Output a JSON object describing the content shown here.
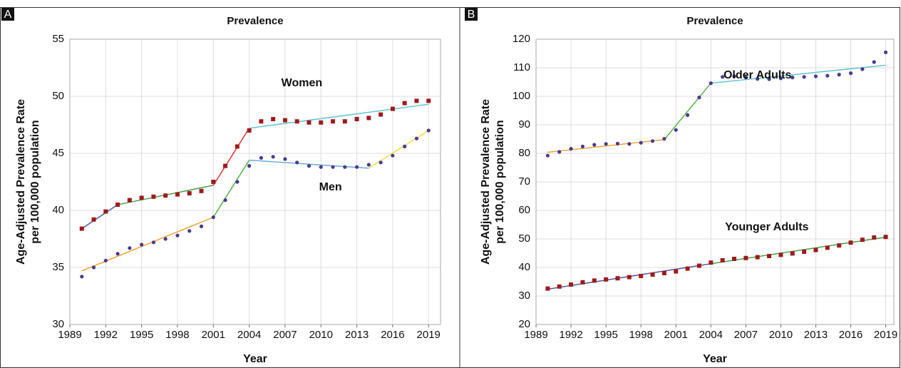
{
  "chart_data": [
    {
      "type": "scatter",
      "panel": "A",
      "title": "Prevalence",
      "x_label": "Year",
      "y_label": [
        "Age-Adjusted Prevalence Rate",
        "per 100,000 population"
      ],
      "xlim": [
        1989,
        2020
      ],
      "xticks": [
        1989,
        1992,
        1995,
        1998,
        2001,
        2004,
        2007,
        2010,
        2013,
        2016,
        2019
      ],
      "ylim": [
        30,
        55
      ],
      "yticks": [
        30,
        35,
        40,
        45,
        50,
        55
      ],
      "grid": true,
      "x": [
        1990,
        1991,
        1992,
        1993,
        1994,
        1995,
        1996,
        1997,
        1998,
        1999,
        2000,
        2001,
        2002,
        2003,
        2004,
        2005,
        2006,
        2007,
        2008,
        2009,
        2010,
        2011,
        2012,
        2013,
        2014,
        2015,
        2016,
        2017,
        2018,
        2019
      ],
      "series": [
        {
          "name": "Women",
          "color": "#9e1b1b",
          "marker": "square",
          "values": [
            38.4,
            39.2,
            39.9,
            40.5,
            40.9,
            41.1,
            41.2,
            41.3,
            41.4,
            41.5,
            41.7,
            42.5,
            43.9,
            45.6,
            47.0,
            47.8,
            48.0,
            47.9,
            47.8,
            47.7,
            47.7,
            47.8,
            47.8,
            48.0,
            48.1,
            48.4,
            48.9,
            49.4,
            49.6,
            49.6
          ],
          "trends": [
            {
              "color": "#3d56a8",
              "x": [
                1990,
                1993
              ],
              "values": [
                38.4,
                40.5
              ]
            },
            {
              "color": "#3c9a3c",
              "x": [
                1993,
                2001
              ],
              "values": [
                40.5,
                42.2
              ]
            },
            {
              "color": "#e0262a",
              "x": [
                2001,
                2004
              ],
              "values": [
                42.2,
                47.2
              ]
            },
            {
              "color": "#5bbfcf",
              "x": [
                2004,
                2019
              ],
              "values": [
                47.2,
                49.3
              ]
            }
          ]
        },
        {
          "name": "Men",
          "color": "#4a3a8f",
          "marker": "circle",
          "values": [
            34.2,
            35.0,
            35.6,
            36.2,
            36.7,
            37.0,
            37.2,
            37.5,
            37.8,
            38.2,
            38.6,
            39.4,
            40.9,
            42.5,
            43.9,
            44.6,
            44.7,
            44.5,
            44.2,
            43.9,
            43.8,
            43.8,
            43.8,
            43.8,
            44.0,
            44.2,
            44.8,
            45.6,
            46.3,
            47.0
          ],
          "trends": [
            {
              "color": "#f0a030",
              "x": [
                1990,
                2001
              ],
              "values": [
                34.7,
                39.4
              ]
            },
            {
              "color": "#4caf3c",
              "x": [
                2001,
                2004
              ],
              "values": [
                39.4,
                44.4
              ]
            },
            {
              "color": "#6aa6d6",
              "x": [
                2004,
                2014
              ],
              "values": [
                44.4,
                43.7
              ]
            },
            {
              "color": "#f2dc3a",
              "x": [
                2014,
                2019
              ],
              "values": [
                43.7,
                47.0
              ]
            }
          ]
        }
      ]
    },
    {
      "type": "scatter",
      "panel": "B",
      "title": "Prevalence",
      "x_label": "Year",
      "y_label": [
        "Age-Adjusted Prevalence Rate",
        "per 100,000 population"
      ],
      "xlim": [
        1989,
        2019.7
      ],
      "xticks": [
        1989,
        1992,
        1995,
        1998,
        2001,
        2004,
        2007,
        2010,
        2013,
        2016,
        2019
      ],
      "ylim": [
        20,
        120
      ],
      "yticks": [
        20,
        30,
        40,
        50,
        60,
        70,
        80,
        90,
        100,
        110,
        120
      ],
      "grid": true,
      "x": [
        1990,
        1991,
        1992,
        1993,
        1994,
        1995,
        1996,
        1997,
        1998,
        1999,
        2000,
        2001,
        2002,
        2003,
        2004,
        2005,
        2006,
        2007,
        2008,
        2009,
        2010,
        2011,
        2012,
        2013,
        2014,
        2015,
        2016,
        2017,
        2018,
        2019
      ],
      "series": [
        {
          "name": "Older Adults",
          "color": "#4a3a8f",
          "marker": "circle",
          "values": [
            79.2,
            80.5,
            81.6,
            82.4,
            83.0,
            83.3,
            83.4,
            83.3,
            83.7,
            84.3,
            85.1,
            88.2,
            93.4,
            99.6,
            104.6,
            106.8,
            107.0,
            106.6,
            106.1,
            106.0,
            106.3,
            106.6,
            106.8,
            107.0,
            107.2,
            107.6,
            108.1,
            109.5,
            112.0,
            115.4
          ],
          "trends": [
            {
              "color": "#f0a030",
              "x": [
                1990,
                2000
              ],
              "values": [
                80.4,
                84.8
              ]
            },
            {
              "color": "#4caf3c",
              "x": [
                2000,
                2004
              ],
              "values": [
                84.8,
                104.6
              ]
            },
            {
              "color": "#5bbfcf",
              "x": [
                2004,
                2019
              ],
              "values": [
                104.6,
                110.9
              ]
            }
          ]
        },
        {
          "name": "Younger Adults",
          "color": "#9e1b1b",
          "marker": "square",
          "values": [
            32.6,
            33.3,
            34.0,
            34.8,
            35.4,
            35.8,
            36.2,
            36.6,
            37.0,
            37.5,
            38.0,
            38.6,
            39.6,
            40.6,
            41.7,
            42.5,
            43.0,
            43.3,
            43.6,
            44.0,
            44.4,
            44.9,
            45.5,
            46.1,
            46.9,
            47.7,
            48.7,
            49.7,
            50.5,
            50.7
          ],
          "trends": [
            {
              "color": "#4d4da0",
              "x": [
                1990,
                2004
              ],
              "values": [
                32.4,
                41.3
              ]
            },
            {
              "color": "#3c9a3c",
              "x": [
                2004,
                2019
              ],
              "values": [
                41.3,
                50.6
              ]
            }
          ]
        }
      ]
    }
  ]
}
